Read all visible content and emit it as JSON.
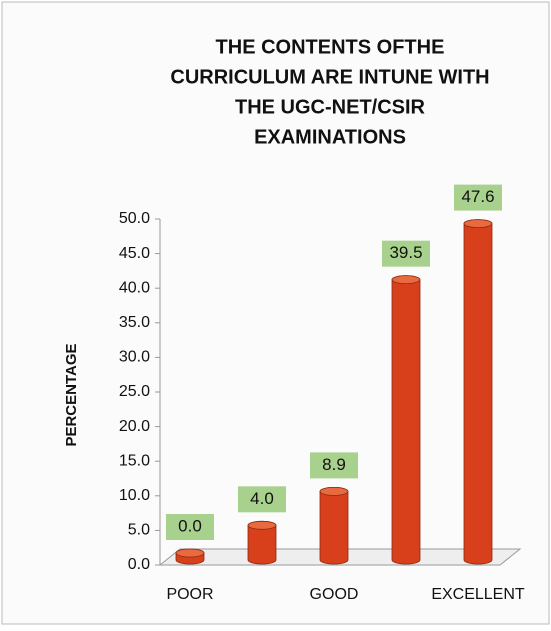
{
  "chart_data": {
    "type": "bar",
    "title": [
      "THE CONTENTS OFTHE",
      "CURRICULUM ARE INTUNE WITH",
      "THE UGC-NET/CSIR",
      "EXAMINATIONS"
    ],
    "y_label": "PERCENTAGE",
    "categories": [
      "POOR",
      null,
      "GOOD",
      null,
      "EXCELLENT"
    ],
    "values": [
      0.0,
      4.0,
      8.9,
      39.5,
      47.6
    ],
    "value_labels": [
      "0.0",
      "4.0",
      "8.9",
      "39.5",
      "47.6"
    ],
    "color": "#d8401c",
    "ylim": [
      0,
      50
    ],
    "yticks": [
      {
        "value": 0,
        "label": "0.0"
      },
      {
        "value": 5,
        "label": "5.0"
      },
      {
        "value": 10,
        "label": "10.0"
      },
      {
        "value": 15,
        "label": "15.0"
      },
      {
        "value": 20,
        "label": "20.0"
      },
      {
        "value": 25,
        "label": "25.0"
      },
      {
        "value": 30,
        "label": "30.0"
      },
      {
        "value": 35,
        "label": "35.0"
      },
      {
        "value": 40,
        "label": "40.0"
      },
      {
        "value": 45,
        "label": "45.0"
      },
      {
        "value": 50,
        "label": "50.0"
      }
    ]
  }
}
